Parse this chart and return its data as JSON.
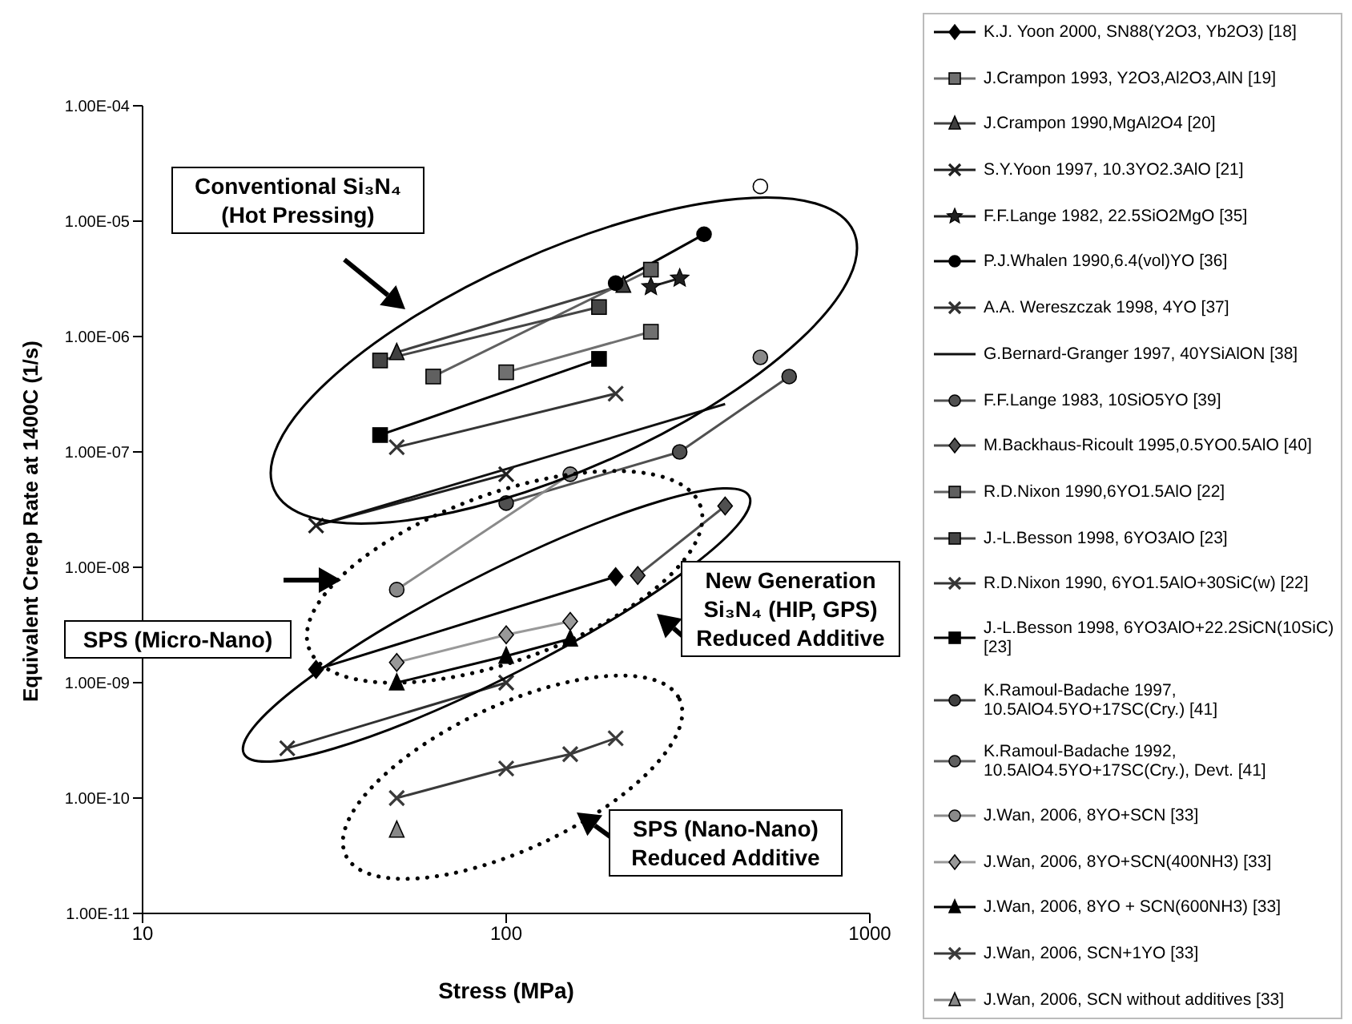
{
  "chart_data": {
    "type": "line",
    "xlabel": "Stress (MPa)",
    "ylabel": "Equivalent Creep Rate at 1400C (1/s)",
    "log": "xy",
    "xlim": [
      10,
      1000
    ],
    "xticks": [
      10,
      100,
      1000
    ],
    "ylim": [
      1e-11,
      0.0001
    ],
    "yticks": [
      {
        "value": 1e-11,
        "label": "1.00E-11"
      },
      {
        "value": 1e-10,
        "label": "1.00E-10"
      },
      {
        "value": 1e-09,
        "label": "1.00E-09"
      },
      {
        "value": 1e-08,
        "label": "1.00E-08"
      },
      {
        "value": 1e-07,
        "label": "1.00E-07"
      },
      {
        "value": 1e-06,
        "label": "1.00E-06"
      },
      {
        "value": 1e-05,
        "label": "1.00E-05"
      },
      {
        "value": 0.0001,
        "label": "1.00E-04"
      }
    ],
    "legend": "right",
    "annotations": [
      "Conventional Si₃N₄ (Hot Pressing)",
      "New Generation Si₃N₄ (HIP, GPS) Reduced Additive",
      "SPS (Micro-Nano)",
      "SPS (Nano-Nano) Reduced Additive"
    ],
    "series": [
      {
        "name": "K.J. Yoon 2000, SN88(Y2O3, Yb2O3) [18]",
        "color": "#000000",
        "marker": "diamond",
        "x": [
          30,
          200
        ],
        "values": [
          1.3e-09,
          8.3e-09
        ]
      },
      {
        "name": "J.Crampon 1993, Y2O3,Al2O3,AlN [19]",
        "color": "#707070",
        "marker": "square",
        "x": [
          100,
          250
        ],
        "values": [
          4.9e-07,
          1.1e-06
        ]
      },
      {
        "name": "J.Crampon 1990,MgAl2O4 [20]",
        "color": "#404040",
        "marker": "triangle",
        "x": [
          50,
          210
        ],
        "values": [
          7.3e-07,
          2.8e-06
        ]
      },
      {
        "name": "S.Y.Yoon 1997, 10.3YO2.3AlO [21]",
        "color": "#202020",
        "marker": "cross",
        "x": [
          30,
          100
        ],
        "values": [
          2.3e-08,
          6.4e-08
        ]
      },
      {
        "name": "F.F.Lange 1982, 22.5SiO2MgO [35]",
        "color": "#202020",
        "marker": "star",
        "x": [
          250,
          300
        ],
        "values": [
          2.7e-06,
          3.2e-06
        ]
      },
      {
        "name": "P.J.Whalen 1990,6.4(vol)YO [36]",
        "color": "#000000",
        "marker": "circle",
        "x": [
          200,
          350
        ],
        "values": [
          2.9e-06,
          7.7e-06
        ]
      },
      {
        "name": "A.A. Wereszczak 1998, 4YO [37]",
        "color": "#303030",
        "marker": "cross",
        "x": [
          25,
          100
        ],
        "values": [
          2.7e-10,
          1e-09
        ]
      },
      {
        "name": "G.Bernard-Granger 1997, 40YSiAlON [38]",
        "color": "#101010",
        "marker": "none",
        "x": [
          30,
          400
        ],
        "values": [
          2.3e-08,
          2.6e-07
        ]
      },
      {
        "name": "F.F.Lange 1983, 10SiO5YO [39]",
        "color": "#505050",
        "marker": "circle",
        "x": [
          100,
          300,
          600
        ],
        "values": [
          3.6e-08,
          1e-07,
          4.5e-07
        ]
      },
      {
        "name": "M.Backhaus-Ricoult 1995,0.5YO0.5AlO [40]",
        "color": "#505050",
        "marker": "diamond",
        "x": [
          230,
          400
        ],
        "values": [
          8.5e-09,
          3.4e-08
        ]
      },
      {
        "name": "R.D.Nixon 1990,6YO1.5AlO [22]",
        "color": "#606060",
        "marker": "square",
        "x": [
          63,
          250
        ],
        "values": [
          4.5e-07,
          3.8e-06
        ]
      },
      {
        "name": "J.-L.Besson 1998, 6YO3AlO [23]",
        "color": "#454545",
        "marker": "square",
        "x": [
          45,
          180
        ],
        "values": [
          6.2e-07,
          1.8e-06
        ]
      },
      {
        "name": "R.D.Nixon 1990, 6YO1.5AlO+30SiC(w) [22]",
        "color": "#353535",
        "marker": "cross",
        "x": [
          50,
          200
        ],
        "values": [
          1.1e-07,
          3.2e-07
        ]
      },
      {
        "name": "J.-L.Besson 1998, 6YO3AlO+22.2SiCN(10SiC) [23]",
        "color": "#000000",
        "marker": "square",
        "x": [
          45,
          180
        ],
        "values": [
          1.4e-07,
          6.4e-07
        ]
      },
      {
        "name": "K.Ramoul-Badache 1997, 10.5AlO4.5YO+17SC(Cry.) [41]",
        "color": "#404040",
        "marker": "circle"
      },
      {
        "name": "K.Ramoul-Badache 1992, 10.5AlO4.5YO+17SC(Cry.), Devt. [41]",
        "color": "#606060",
        "marker": "circle"
      },
      {
        "name": "J.Wan, 2006, 8YO+SCN [33]",
        "color": "#8a8a8a",
        "marker": "circle",
        "x": [
          50,
          150
        ],
        "values": [
          6.4e-09,
          6.4e-08
        ]
      },
      {
        "color": "#8a8a8a",
        "marker": "circle",
        "x": [
          500
        ],
        "values": [
          6.6e-07
        ]
      },
      {
        "color": "#ffffff",
        "marker": "circle",
        "x": [
          500
        ],
        "values": [
          2e-05
        ]
      },
      {
        "name": "J.Wan, 2006, 8YO+SCN(400NH3) [33]",
        "color": "#999999",
        "marker": "diamond",
        "x": [
          50,
          100,
          150
        ],
        "values": [
          1.5e-09,
          2.6e-09,
          3.4e-09
        ]
      },
      {
        "name": "J.Wan, 2006, 8YO + SCN(600NH3) [33]",
        "color": "#000000",
        "marker": "triangle",
        "x": [
          50,
          100,
          150
        ],
        "values": [
          1e-09,
          1.7e-09,
          2.4e-09
        ]
      },
      {
        "name": "J.Wan, 2006, SCN+1YO [33]",
        "color": "#3a3a3a",
        "marker": "cross",
        "x": [
          50,
          100,
          150,
          200
        ],
        "values": [
          1e-10,
          1.8e-10,
          2.4e-10,
          3.3e-10
        ]
      },
      {
        "name": "J.Wan, 2006, SCN without additives [33]",
        "color": "#888888",
        "marker": "triangle",
        "x": [
          50
        ],
        "values": [
          5.3e-11
        ]
      }
    ]
  }
}
